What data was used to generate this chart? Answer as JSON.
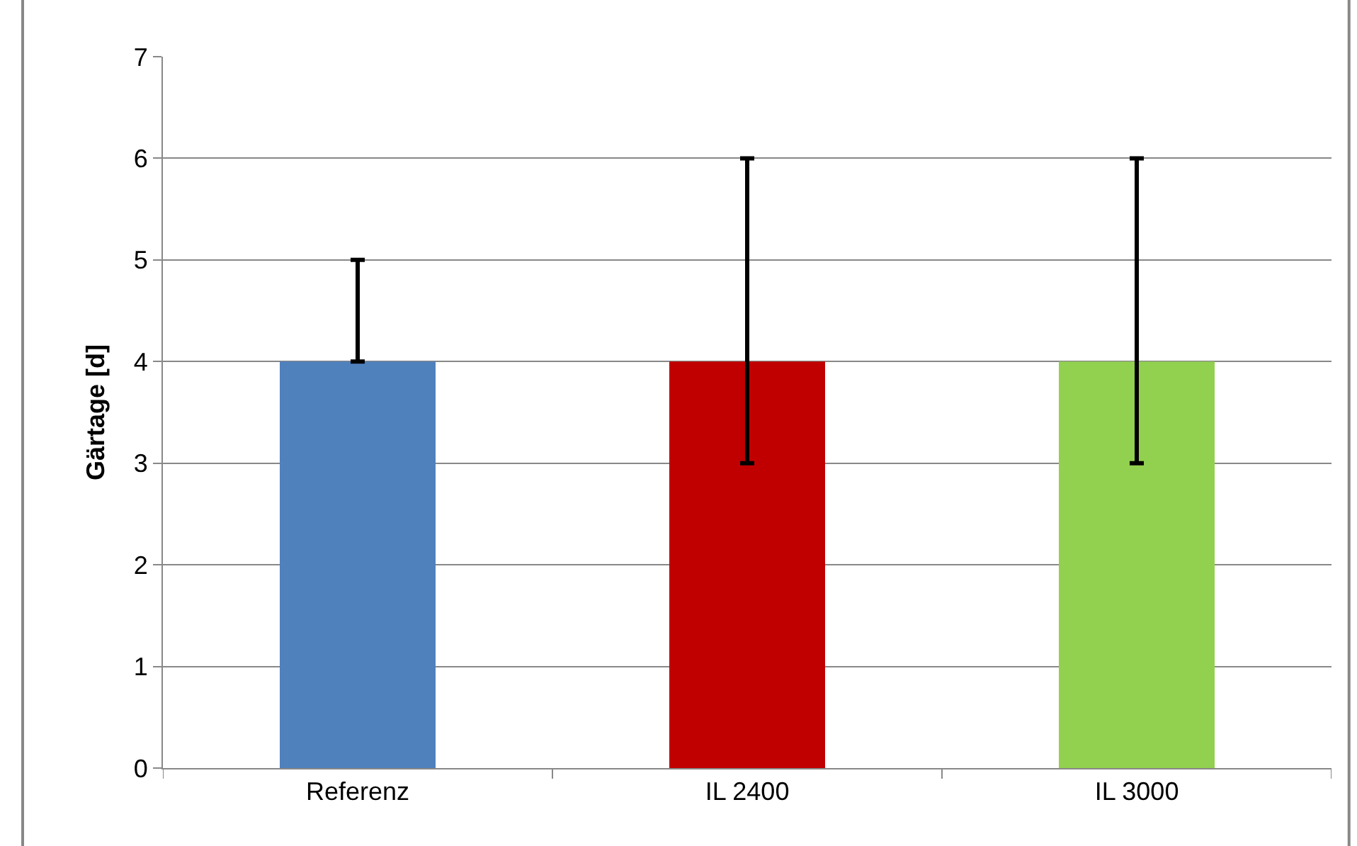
{
  "chart_data": {
    "type": "bar",
    "ylabel": "Gärtage [d]",
    "categories": [
      "Referenz",
      "IL 2400",
      "IL 3000"
    ],
    "values": [
      4,
      4,
      4
    ],
    "colors": [
      "#4f81bd",
      "#c00000",
      "#92d050"
    ],
    "errors": [
      [
        4,
        5
      ],
      [
        3,
        6
      ],
      [
        3,
        6
      ]
    ],
    "ylim": [
      0,
      7
    ],
    "yticks": [
      0,
      1,
      2,
      3,
      4,
      5,
      6,
      7
    ],
    "grid": "y"
  }
}
